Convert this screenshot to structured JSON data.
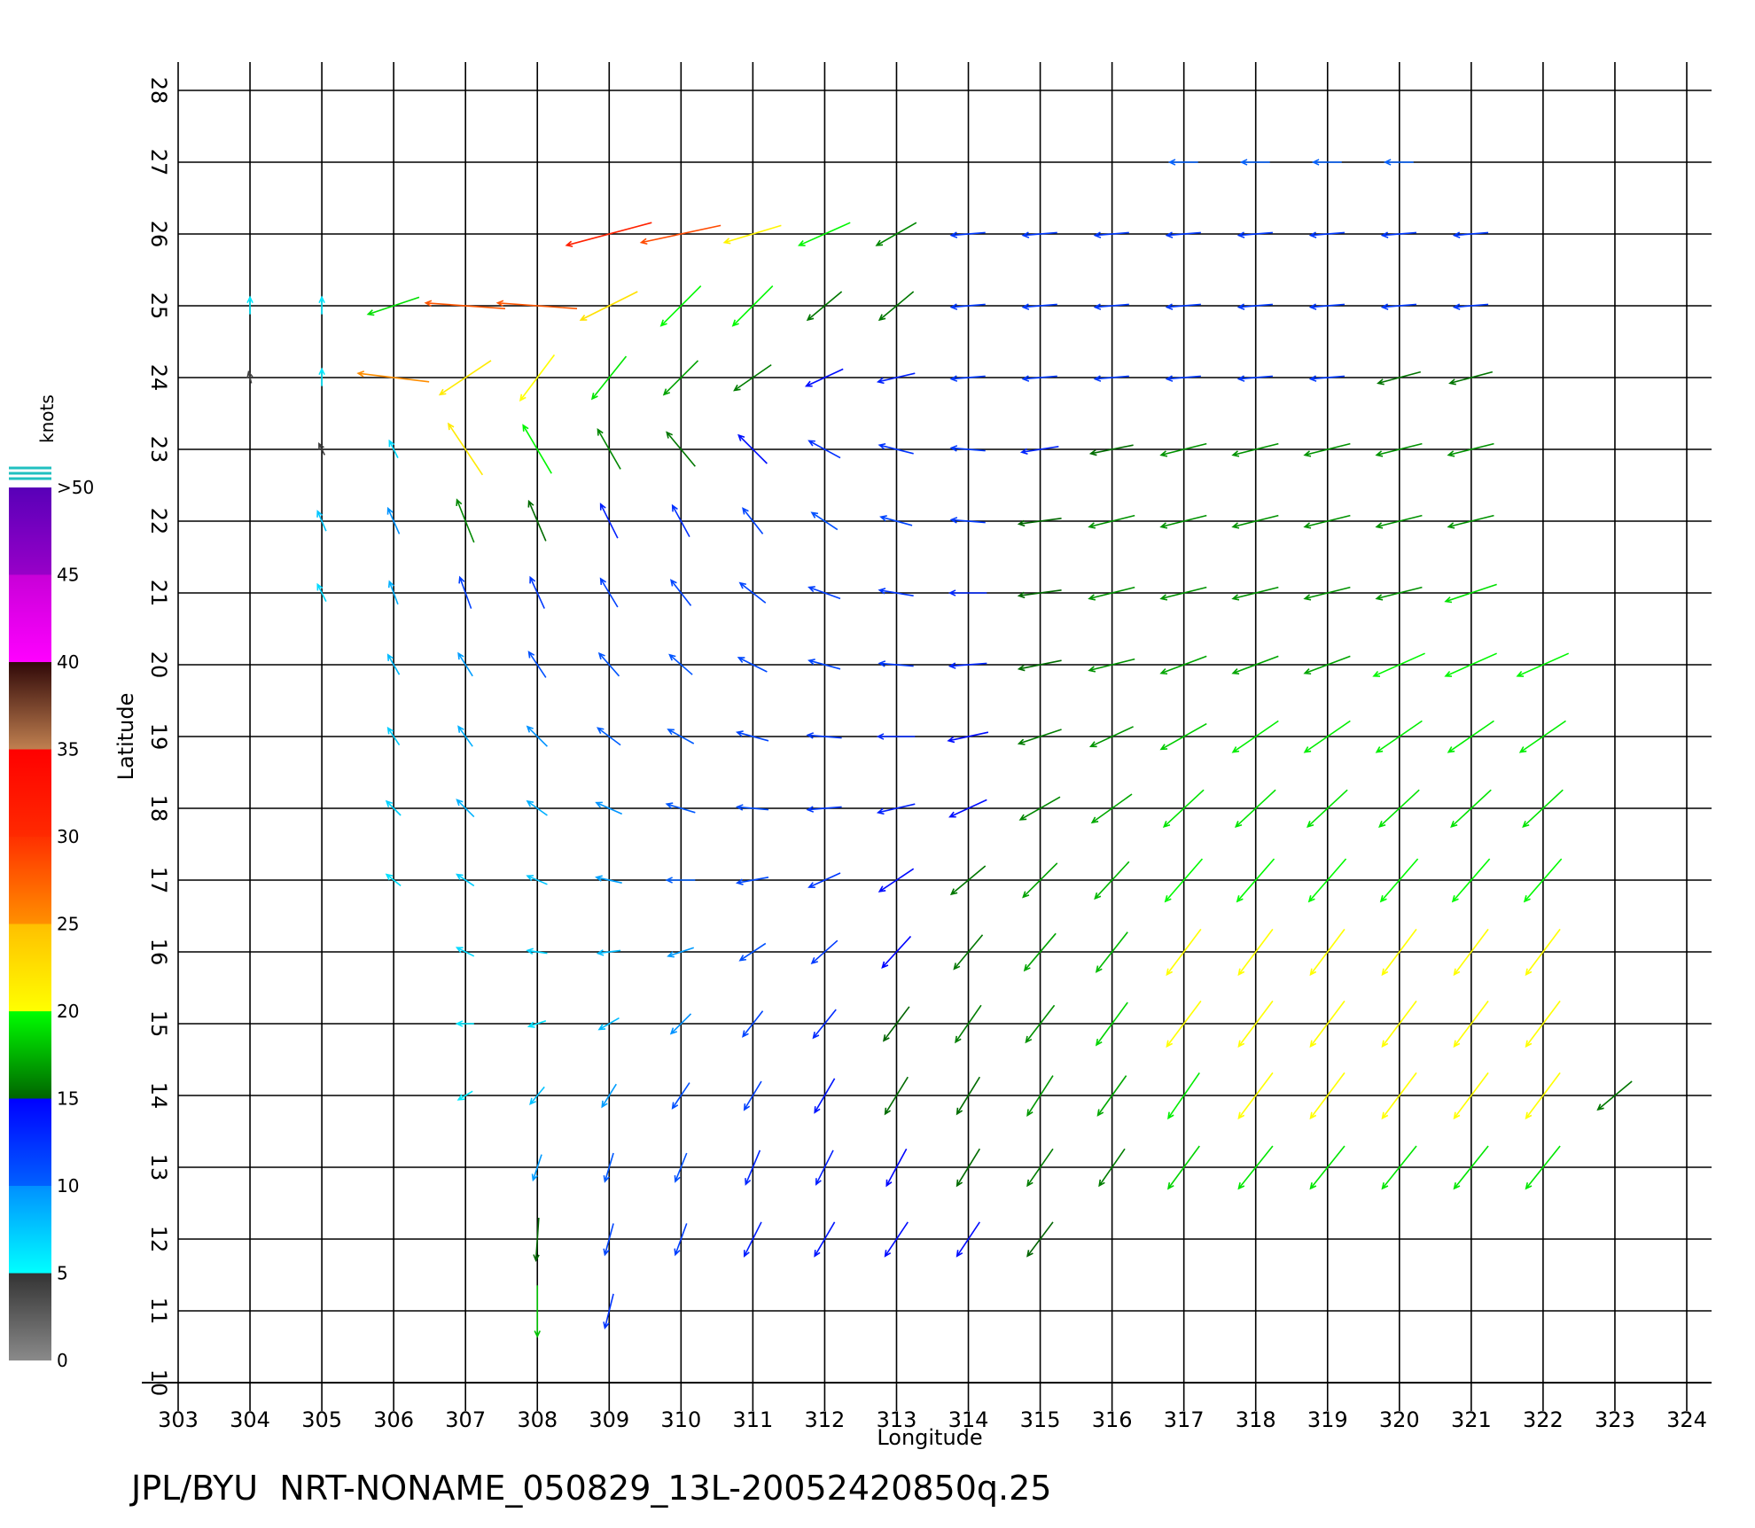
{
  "chart_data": {
    "type": "quiver",
    "footer_title": "JPL/BYU  NRT-NONAME_050829_13L-20052420850q.25",
    "xlabel": "Longitude",
    "ylabel": "Latitude",
    "xlim": [
      303,
      324
    ],
    "ylim": [
      10,
      28
    ],
    "xticks": [
      303,
      304,
      305,
      306,
      307,
      308,
      309,
      310,
      311,
      312,
      313,
      314,
      315,
      316,
      317,
      318,
      319,
      320,
      321,
      322,
      323,
      324
    ],
    "yticks": [
      10,
      11,
      12,
      13,
      14,
      15,
      16,
      17,
      18,
      19,
      20,
      21,
      22,
      23,
      24,
      25,
      26,
      27,
      28
    ],
    "grid": true,
    "lon": [
      304,
      305,
      306,
      307,
      308,
      309,
      310,
      311,
      312,
      313,
      314,
      315,
      316,
      317,
      318,
      319,
      320,
      321,
      322,
      323
    ],
    "lat": [
      27,
      26,
      25,
      24,
      23,
      22,
      21,
      20,
      19,
      18,
      17,
      16,
      15,
      14,
      13,
      12,
      11
    ],
    "u": [
      [
        null,
        null,
        null,
        null,
        null,
        null,
        null,
        null,
        null,
        null,
        null,
        null,
        null,
        -10,
        -10,
        -10,
        -10,
        null,
        null,
        null
      ],
      [
        null,
        null,
        null,
        null,
        null,
        -30,
        -28,
        -20,
        -18,
        -14,
        -12,
        -12,
        -12,
        -12,
        -12,
        -12,
        -12,
        -12,
        null,
        null
      ],
      [
        0,
        0,
        -18,
        -28,
        -28,
        -20,
        -14,
        -14,
        -12,
        -12,
        -12,
        -12,
        -12,
        -12,
        -12,
        -12,
        -12,
        -12,
        null,
        null
      ],
      [
        -1,
        0,
        -25,
        -18,
        -12,
        -12,
        -12,
        -13,
        -13,
        -13,
        -12,
        -12,
        -12,
        -12,
        -12,
        -12,
        -15,
        -15,
        null,
        null
      ],
      [
        null,
        -2,
        -3,
        -12,
        -10,
        -8,
        -10,
        -10,
        -11,
        -12,
        -12,
        -13,
        -15,
        -16,
        -16,
        -16,
        -16,
        -16,
        null,
        null
      ],
      [
        null,
        -3,
        -4,
        -6,
        -6,
        -6,
        -6,
        -7,
        -9,
        -11,
        -12,
        -15,
        -16,
        -16,
        -16,
        -16,
        -16,
        -16,
        null,
        null
      ],
      [
        null,
        -3,
        -3,
        -4,
        -5,
        -6,
        -7,
        -9,
        -11,
        -12,
        -13,
        -15,
        -16,
        -16,
        -16,
        -16,
        -16,
        -18,
        null,
        null
      ],
      [
        null,
        null,
        -4,
        -5,
        -6,
        -7,
        -8,
        -10,
        -11,
        -12,
        -13,
        -15,
        -16,
        -16,
        -16,
        -16,
        -18,
        -18,
        -18,
        null
      ],
      [
        null,
        null,
        -4,
        -5,
        -7,
        -8,
        -9,
        -11,
        -12,
        -13,
        -14,
        -15,
        -15,
        -16,
        -16,
        -16,
        -16,
        -16,
        -16,
        null
      ],
      [
        null,
        null,
        -5,
        -6,
        -7,
        -9,
        -10,
        -11,
        -12,
        -13,
        -13,
        -14,
        -14,
        -14,
        -14,
        -14,
        -14,
        -14,
        -14,
        null
      ],
      [
        null,
        null,
        -5,
        -6,
        -7,
        -9,
        -10,
        -11,
        -11,
        -12,
        -12,
        -12,
        -12,
        -13,
        -13,
        -13,
        -13,
        -13,
        -13,
        null
      ],
      [
        null,
        null,
        null,
        -6,
        -7,
        -8,
        -9,
        -9,
        -9,
        -10,
        -10,
        -11,
        -11,
        -12,
        -12,
        -12,
        -12,
        -12,
        -12,
        null
      ],
      [
        null,
        null,
        null,
        -6,
        -6,
        -7,
        -7,
        -7,
        -8,
        -9,
        -9,
        -10,
        -11,
        -12,
        -12,
        -12,
        -12,
        -12,
        -12,
        null
      ],
      [
        null,
        null,
        null,
        -5,
        -5,
        -5,
        -6,
        -6,
        -7,
        -8,
        -8,
        -9,
        -10,
        -11,
        -12,
        -12,
        -12,
        -12,
        -12,
        -12
      ],
      [
        null,
        null,
        null,
        null,
        -3,
        -3,
        -4,
        -5,
        -6,
        -7,
        -8,
        -9,
        -9,
        -11,
        -12,
        -12,
        -12,
        -12,
        -12,
        null
      ],
      [
        null,
        null,
        null,
        null,
        -1,
        -3,
        -4,
        -6,
        -7,
        -8,
        -8,
        -9,
        null,
        null,
        null,
        null,
        null,
        null,
        null,
        null
      ],
      [
        null,
        null,
        null,
        null,
        0,
        -3,
        null,
        null,
        null,
        null,
        null,
        null,
        null,
        null,
        null,
        null,
        null,
        null,
        null,
        null
      ]
    ],
    "v": [
      [
        null,
        null,
        null,
        null,
        null,
        null,
        null,
        null,
        null,
        null,
        null,
        null,
        null,
        0,
        0,
        0,
        0,
        null,
        null,
        null
      ],
      [
        null,
        null,
        null,
        null,
        null,
        -8,
        -6,
        -6,
        -8,
        -8,
        -1,
        -1,
        -1,
        -1,
        -1,
        -1,
        -1,
        -1,
        null,
        null
      ],
      [
        6,
        6,
        -6,
        2,
        2,
        -10,
        -14,
        -14,
        -10,
        -10,
        -1,
        -1,
        -1,
        -1,
        -1,
        -1,
        -1,
        -1,
        null,
        null
      ],
      [
        4,
        6,
        3,
        -12,
        -16,
        -15,
        -12,
        -9,
        -6,
        -3,
        -1,
        -1,
        -1,
        -1,
        -1,
        -1,
        -4,
        -4,
        null,
        null
      ],
      [
        null,
        4,
        6,
        18,
        17,
        14,
        12,
        10,
        6,
        3,
        1,
        -2,
        -3,
        -4,
        -4,
        -4,
        -4,
        -4,
        null,
        null
      ],
      [
        null,
        7,
        9,
        15,
        14,
        12,
        11,
        9,
        6,
        3,
        1,
        -2,
        -4,
        -4,
        -4,
        -4,
        -4,
        -4,
        null,
        null
      ],
      [
        null,
        6,
        8,
        11,
        11,
        10,
        9,
        7,
        4,
        2,
        0,
        -2,
        -4,
        -4,
        -4,
        -4,
        -4,
        -6,
        null,
        null
      ],
      [
        null,
        null,
        7,
        8,
        9,
        8,
        7,
        5,
        3,
        1,
        -1,
        -3,
        -4,
        -6,
        -6,
        -6,
        -8,
        -8,
        -8,
        null
      ],
      [
        null,
        null,
        6,
        7,
        7,
        6,
        5,
        3,
        1,
        0,
        -3,
        -5,
        -7,
        -9,
        -11,
        -11,
        -11,
        -11,
        -11,
        null
      ],
      [
        null,
        null,
        5,
        6,
        5,
        4,
        3,
        1,
        -1,
        -3,
        -6,
        -8,
        -10,
        -13,
        -13,
        -13,
        -13,
        -13,
        -13,
        null
      ],
      [
        null,
        null,
        4,
        4,
        3,
        2,
        0,
        -2,
        -5,
        -8,
        -10,
        -12,
        -13,
        -15,
        -15,
        -15,
        -15,
        -15,
        -15,
        null
      ],
      [
        null,
        null,
        null,
        3,
        1,
        -1,
        -3,
        -6,
        -8,
        -11,
        -12,
        -13,
        -14,
        -16,
        -16,
        -16,
        -16,
        -16,
        -16,
        null
      ],
      [
        null,
        null,
        null,
        0,
        -2,
        -4,
        -7,
        -9,
        -10,
        -12,
        -13,
        -13,
        -15,
        -16,
        -16,
        -16,
        -16,
        -16,
        -16,
        null
      ],
      [
        null,
        null,
        null,
        -3,
        -6,
        -8,
        -9,
        -10,
        -12,
        -13,
        -13,
        -14,
        -14,
        -16,
        -16,
        -16,
        -16,
        -16,
        -16,
        -10
      ],
      [
        null,
        null,
        null,
        null,
        -9,
        -10,
        -10,
        -12,
        -12,
        -13,
        -13,
        -13,
        -13,
        -15,
        -15,
        -15,
        -15,
        -15,
        -15,
        null
      ],
      [
        null,
        null,
        null,
        null,
        -15,
        -11,
        -11,
        -12,
        -12,
        -12,
        -12,
        -12,
        null,
        null,
        null,
        null,
        null,
        null,
        null,
        null
      ],
      [
        null,
        null,
        null,
        null,
        -18,
        -12,
        null,
        null,
        null,
        null,
        null,
        null,
        null,
        null,
        null,
        null,
        null,
        null,
        null,
        null
      ]
    ],
    "colorbar": {
      "label": "knots",
      "ticks": [
        0,
        5,
        10,
        15,
        20,
        25,
        30,
        35,
        40,
        45,
        {
          "value": 50,
          "label": ">50"
        }
      ],
      "bin_colors": [
        [
          "#8a8a8a",
          "#333333"
        ],
        [
          "#00ffff",
          "#0090ff"
        ],
        [
          "#0060ff",
          "#0000ff"
        ],
        [
          "#006400",
          "#00ff00"
        ],
        [
          "#ffff00",
          "#ffc000"
        ],
        [
          "#ff9000",
          "#ff3000"
        ],
        [
          "#ff2a00",
          "#ff0000"
        ],
        [
          "#c08050",
          "#300808"
        ],
        [
          "#ff00ff",
          "#c800d8"
        ],
        [
          "#9800c8",
          "#5800b8"
        ]
      ]
    }
  }
}
